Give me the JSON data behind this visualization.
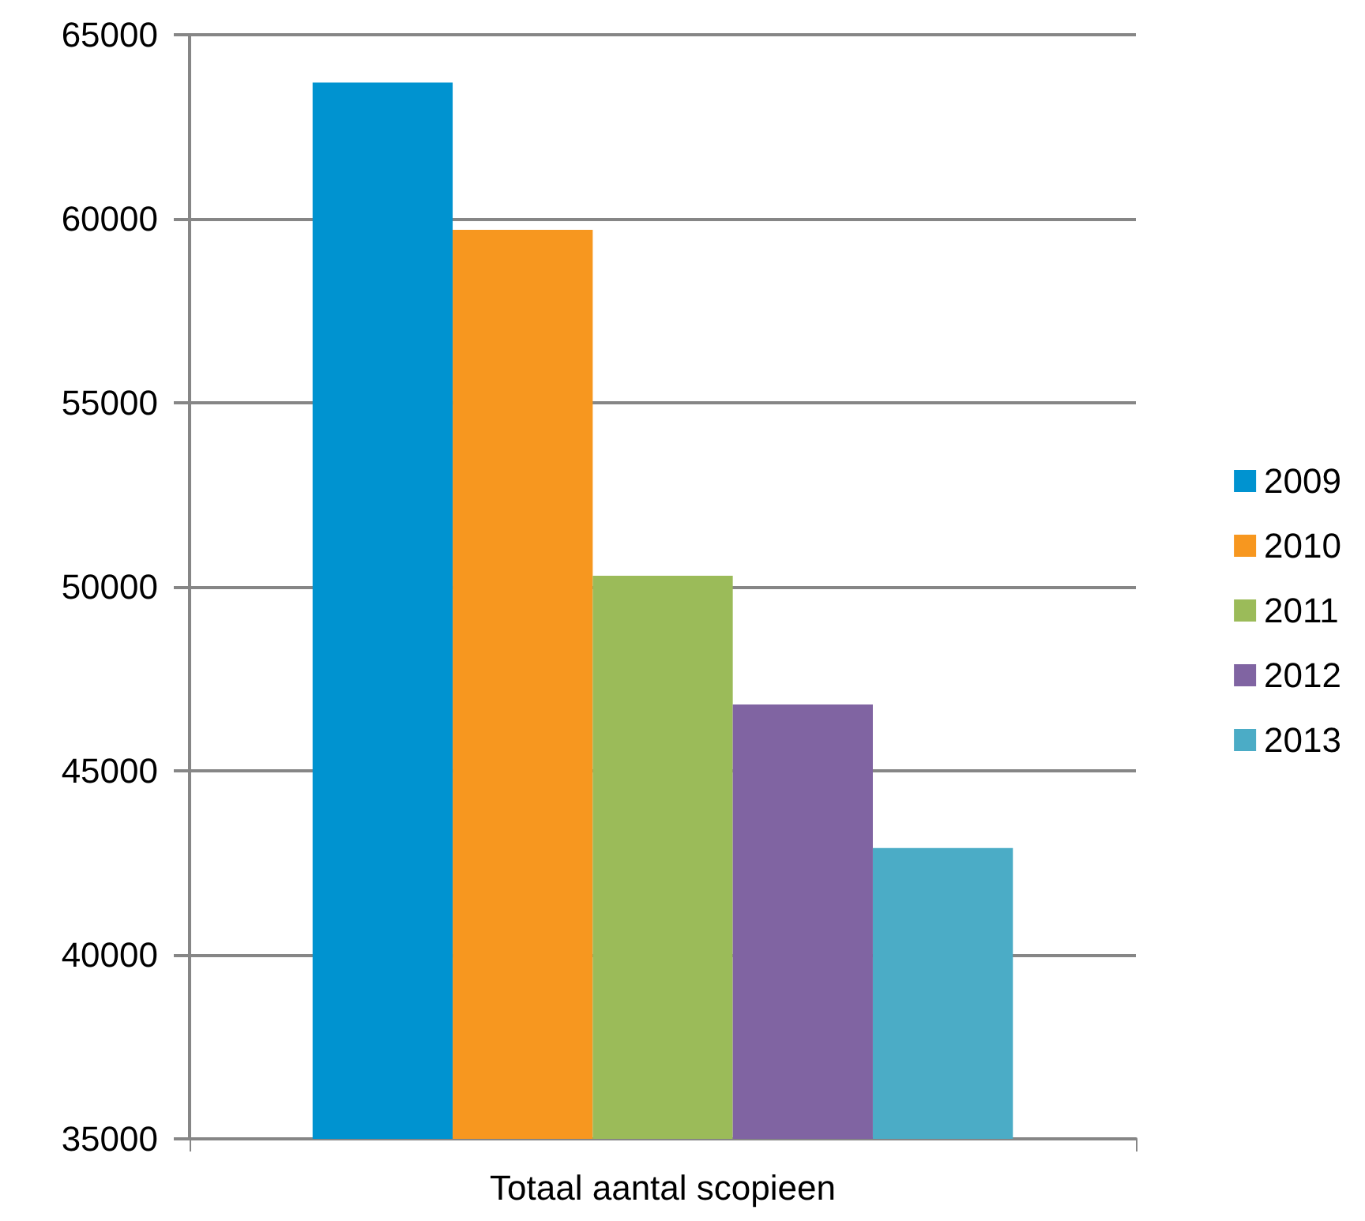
{
  "chart_data": {
    "type": "bar",
    "categories": [
      "Totaal aantal scopieen"
    ],
    "series": [
      {
        "name": "2009",
        "color": "#0093d0",
        "values": [
          63700
        ]
      },
      {
        "name": "2010",
        "color": "#f7971f",
        "values": [
          59700
        ]
      },
      {
        "name": "2011",
        "color": "#9bbb59",
        "values": [
          50300
        ]
      },
      {
        "name": "2012",
        "color": "#8064a2",
        "values": [
          46800
        ]
      },
      {
        "name": "2013",
        "color": "#4bacc6",
        "values": [
          42900
        ]
      }
    ],
    "ylim": [
      35000,
      65000
    ],
    "yticks": [
      35000,
      40000,
      45000,
      50000,
      55000,
      60000,
      65000
    ],
    "grid": "y",
    "legend": "right"
  }
}
